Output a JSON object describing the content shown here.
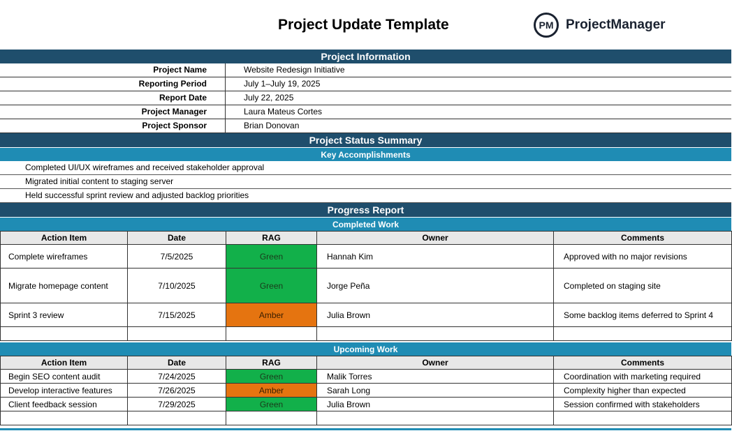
{
  "header": {
    "title": "Project Update Template",
    "brand_initials": "PM",
    "brand_name": "ProjectManager"
  },
  "project_information": {
    "heading": "Project Information",
    "rows": [
      {
        "label": "Project Name",
        "value": "Website Redesign Initiative"
      },
      {
        "label": "Reporting Period",
        "value": "July 1–July 19, 2025"
      },
      {
        "label": "Report Date",
        "value": "July 22, 2025"
      },
      {
        "label": "Project Manager",
        "value": "Laura Mateus Cortes"
      },
      {
        "label": "Project Sponsor",
        "value": "Brian Donovan"
      }
    ]
  },
  "status_summary": {
    "heading": "Project Status Summary",
    "subheading": "Key Accomplishments",
    "items": [
      "Completed UI/UX wireframes and received stakeholder approval",
      "Migrated initial content to staging server",
      "Held successful sprint review and adjusted backlog priorities"
    ]
  },
  "progress_report": {
    "heading": "Progress Report",
    "columns": [
      "Action Item",
      "Date",
      "RAG",
      "Owner",
      "Comments"
    ],
    "completed": {
      "subheading": "Completed Work",
      "rows": [
        {
          "item": "Complete wireframes",
          "date": "7/5/2025",
          "rag": "Green",
          "owner": "Hannah Kim",
          "comments": "Approved with no major revisions"
        },
        {
          "item": "Migrate homepage content",
          "date": "7/10/2025",
          "rag": "Green",
          "owner": "Jorge Peña",
          "comments": "Completed on staging site"
        },
        {
          "item": "Sprint 3 review",
          "date": "7/15/2025",
          "rag": "Amber",
          "owner": "Julia Brown",
          "comments": "Some backlog items deferred to Sprint 4"
        }
      ]
    },
    "upcoming": {
      "subheading": "Upcoming Work",
      "rows": [
        {
          "item": "Begin SEO content audit",
          "date": "7/24/2025",
          "rag": "Green",
          "owner": "Malik Torres",
          "comments": "Coordination with marketing required"
        },
        {
          "item": "Develop interactive features",
          "date": "7/26/2025",
          "rag": "Amber",
          "owner": "Sarah Long",
          "comments": "Complexity higher than expected"
        },
        {
          "item": "Client feedback session",
          "date": "7/29/2025",
          "rag": "Green",
          "owner": "Julia Brown",
          "comments": "Session confirmed with stakeholders"
        }
      ]
    }
  },
  "colors": {
    "section_dark": "#1f4e6c",
    "section_light": "#1f8cb4",
    "rag_green": "#12b04a",
    "rag_amber": "#e57410"
  }
}
